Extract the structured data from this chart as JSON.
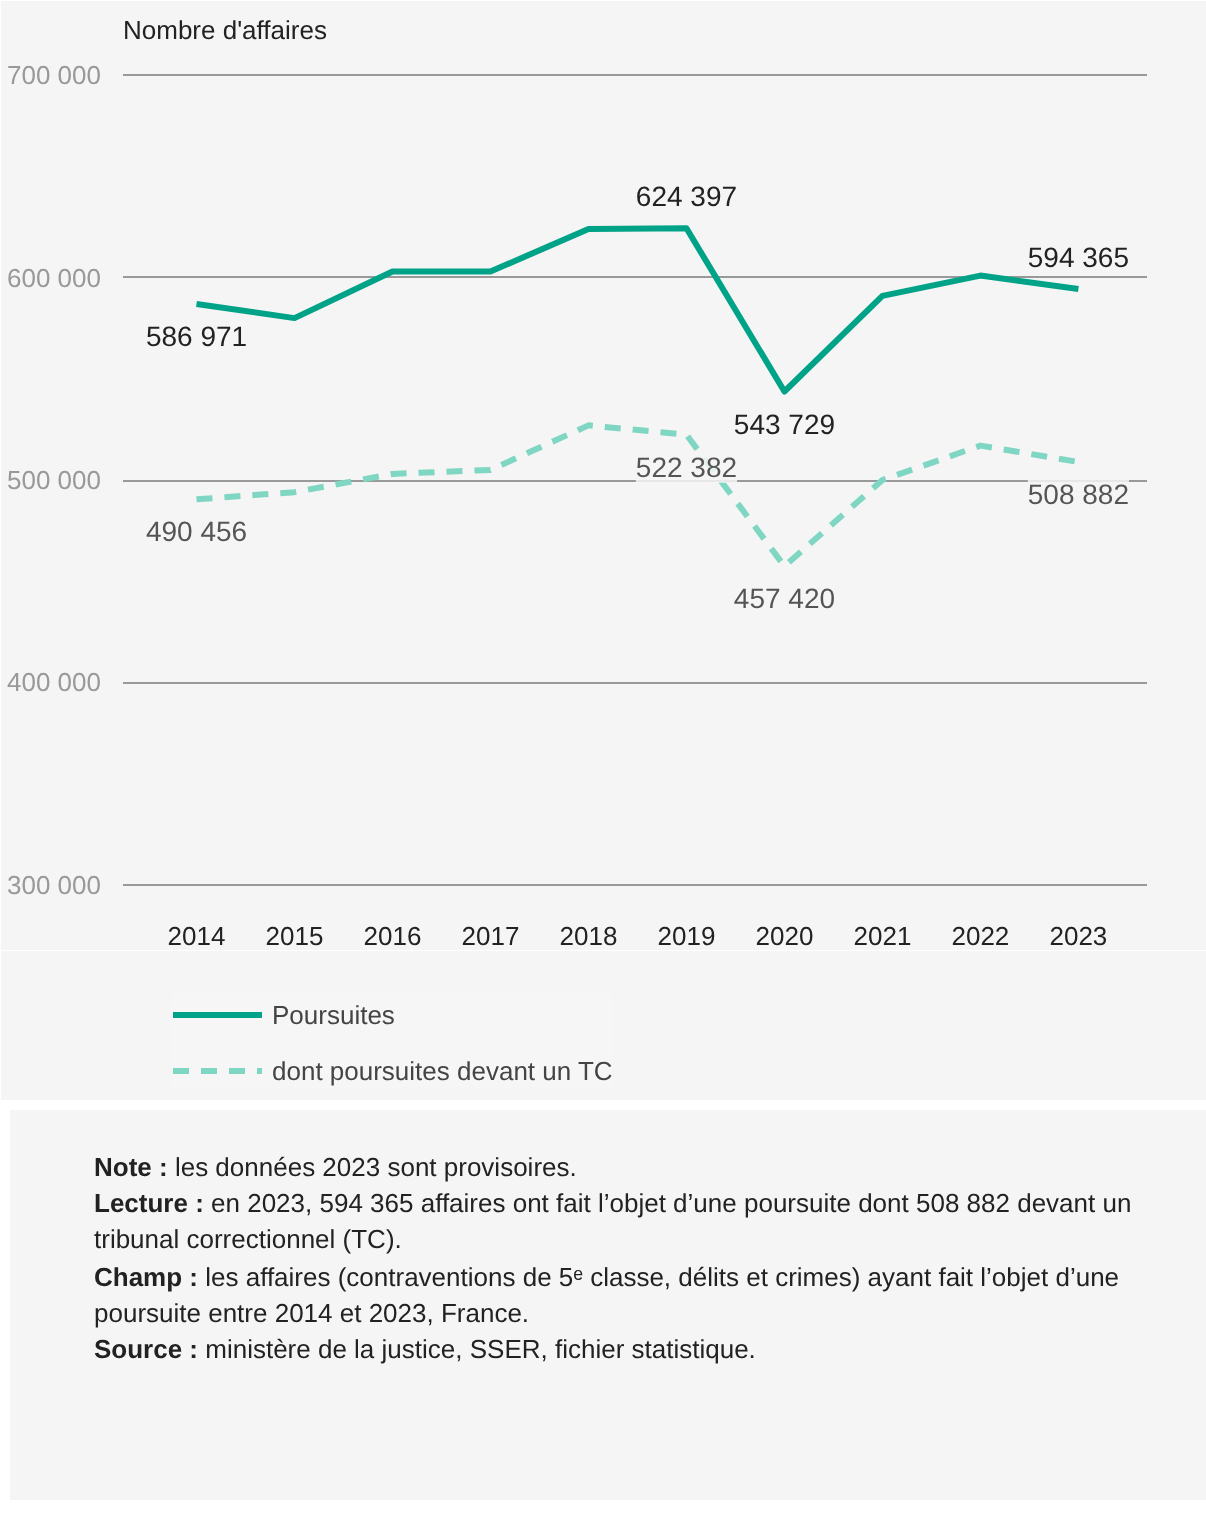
{
  "chart_data": {
    "type": "line",
    "ylabel": "Nombre d'affaires",
    "categories": [
      "2014",
      "2015",
      "2016",
      "2017",
      "2018",
      "2019",
      "2020",
      "2021",
      "2022",
      "2023"
    ],
    "series": [
      {
        "name": "Poursuites",
        "color": "#00a387",
        "line_style": "solid",
        "values": [
          586971,
          580000,
          603000,
          603000,
          624000,
          624397,
          543729,
          591000,
          601000,
          594365
        ],
        "value_labels": [
          "586 971",
          null,
          null,
          null,
          null,
          "624 397",
          "543 729",
          null,
          null,
          "594 365"
        ]
      },
      {
        "name": "dont poursuites devant un TC",
        "color": "#7fd6c2",
        "line_style": "dashed",
        "values": [
          490456,
          494000,
          503000,
          505000,
          527000,
          522382,
          457420,
          500000,
          517000,
          508882
        ],
        "value_labels": [
          "490 456",
          null,
          null,
          null,
          null,
          "522 382",
          "457 420",
          null,
          null,
          "508 882"
        ]
      }
    ],
    "ylim": [
      290000,
      710000
    ],
    "yticks": [
      {
        "value": 300000,
        "label": "300 000"
      },
      {
        "value": 400000,
        "label": "400 000"
      },
      {
        "value": 500000,
        "label": "500 000"
      },
      {
        "value": 600000,
        "label": "600 000"
      },
      {
        "value": 700000,
        "label": "700 000"
      }
    ],
    "grid": "y",
    "legend": "bottom",
    "marker": "none",
    "annotations": [
      "Note : les données 2023 sont provisoires.",
      "Lecture : en 2023, 594 365 affaires ont fait l’objet d’une poursuite dont 508 882 devant un tribunal correctionnel (TC).",
      "Champ : les affaires (contraventions de 5ᵉ classe, délits et crimes) ayant fait l’objet d’une poursuite entre 2014 et 2023, France.",
      "Source : ministère de la justice, SSER, fichier statistique."
    ]
  }
}
